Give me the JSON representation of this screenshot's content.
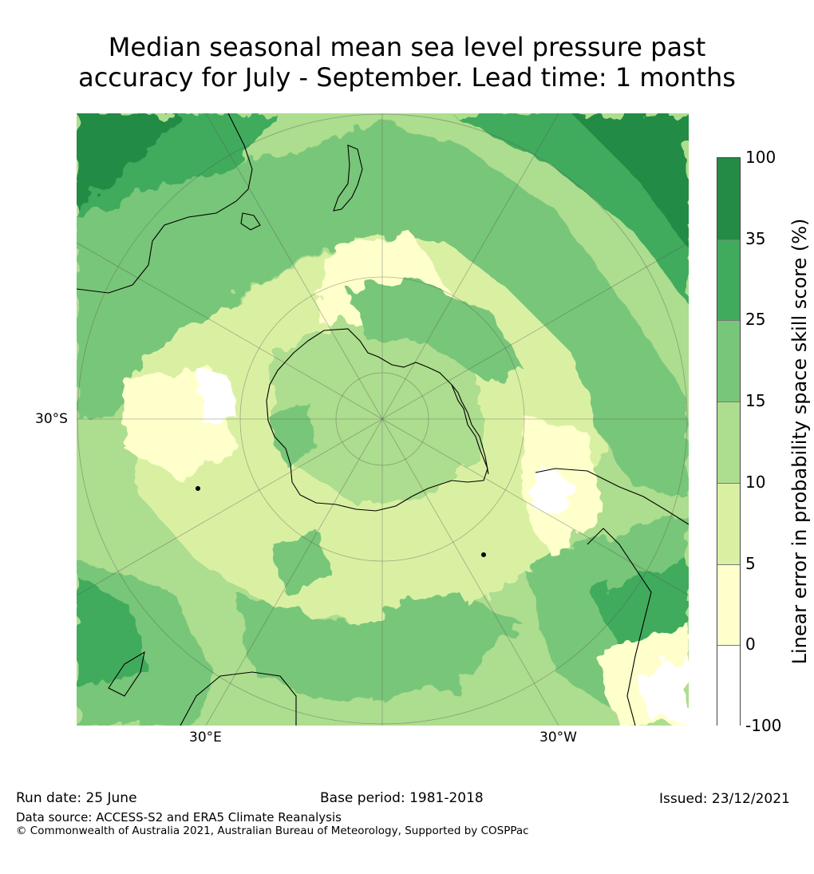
{
  "title": {
    "line1": "Median seasonal mean sea level pressure past",
    "line2": "accuracy for July - September. Lead time: 1 months"
  },
  "map": {
    "projection": "south-polar stereographic",
    "labels": {
      "lat_30s": "30°S",
      "lon_30e": "30°E",
      "lon_30w": "30°W"
    }
  },
  "colorbar": {
    "label": "Linear error in probability space skill score (%)",
    "ticks": [
      "100",
      "35",
      "25",
      "15",
      "10",
      "5",
      "0",
      "-100"
    ],
    "bins": [
      {
        "range": "35 to 100",
        "color": "#238b45"
      },
      {
        "range": "25 to 35",
        "color": "#41ab5d"
      },
      {
        "range": "15 to 25",
        "color": "#78c679"
      },
      {
        "range": "10 to 15",
        "color": "#addd8e"
      },
      {
        "range": "5 to 10",
        "color": "#d9f0a3"
      },
      {
        "range": "0 to 5",
        "color": "#ffffcc"
      },
      {
        "range": "-100 to 0",
        "color": "#ffffff"
      }
    ]
  },
  "footer": {
    "run_date": "Run date: 25 June",
    "base_period": "Base period: 1981-2018",
    "issued": "Issued: 23/12/2021",
    "data_source": "Data source: ACCESS-S2 and ERA5 Climate Reanalysis",
    "copyright": "© Commonwealth of Australia 2021, Australian Bureau of Meteorology, Supported by COSPPac"
  }
}
